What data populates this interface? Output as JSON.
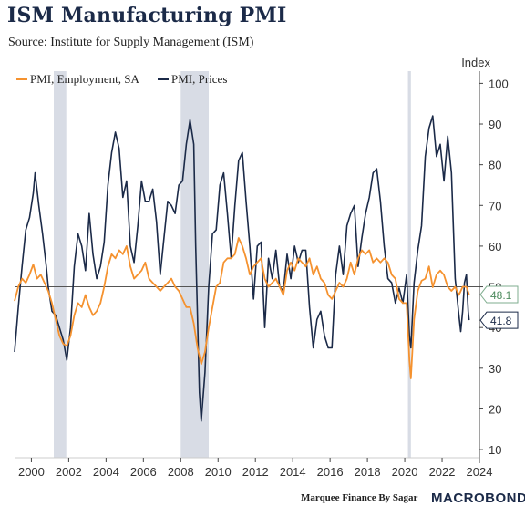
{
  "header": {
    "title": "ISM Manufacturing PMI",
    "subtitle": "Source: Institute for Supply Management (ISM)"
  },
  "footer": {
    "credit": "Marquee Finance By Sagar",
    "brand": "MACROBOND"
  },
  "chart_data": {
    "type": "line",
    "ylabel": "Index",
    "ylim": [
      8,
      103
    ],
    "xlim": [
      1999.1,
      2024.0
    ],
    "y_ticks": [
      10,
      20,
      30,
      40,
      50,
      60,
      70,
      80,
      90,
      100
    ],
    "x_ticks": [
      2000,
      2002,
      2004,
      2006,
      2008,
      2010,
      2012,
      2014,
      2016,
      2018,
      2020,
      2022,
      2024
    ],
    "legend_placement": "top-left",
    "reference_line": 50,
    "recessions": [
      [
        2001.2,
        2001.87
      ],
      [
        2008.0,
        2009.5
      ],
      [
        2020.17,
        2020.33
      ]
    ],
    "colors": {
      "employment": "#f5922f",
      "prices": "#1b2a48",
      "recession": "#d8dce5",
      "reference": "#555555",
      "employment_label_border": "#7fae8f",
      "employment_label_text": "#4c8a5d"
    },
    "last_value_labels": [
      {
        "series": "PMI, Employment, SA",
        "text": "48.1",
        "value": 48.1
      },
      {
        "series": "PMI, Prices",
        "text": "41.8",
        "value": 41.8
      }
    ],
    "series": [
      {
        "name": "PMI, Employment, SA",
        "color": "#f5922f",
        "points": [
          [
            1999.1,
            46.5
          ],
          [
            1999.3,
            50
          ],
          [
            1999.5,
            52
          ],
          [
            1999.7,
            51
          ],
          [
            1999.9,
            53
          ],
          [
            2000.1,
            55.5
          ],
          [
            2000.3,
            52
          ],
          [
            2000.5,
            53
          ],
          [
            2000.7,
            51
          ],
          [
            2000.9,
            49
          ],
          [
            2001.1,
            46
          ],
          [
            2001.3,
            42
          ],
          [
            2001.5,
            38
          ],
          [
            2001.7,
            36
          ],
          [
            2001.9,
            35.5
          ],
          [
            2002.1,
            38
          ],
          [
            2002.3,
            43
          ],
          [
            2002.5,
            46
          ],
          [
            2002.7,
            45
          ],
          [
            2002.9,
            48
          ],
          [
            2003.1,
            45
          ],
          [
            2003.3,
            43
          ],
          [
            2003.5,
            44
          ],
          [
            2003.7,
            46
          ],
          [
            2003.9,
            50
          ],
          [
            2004.1,
            55
          ],
          [
            2004.3,
            58
          ],
          [
            2004.5,
            57
          ],
          [
            2004.7,
            59
          ],
          [
            2004.9,
            58
          ],
          [
            2005.1,
            60
          ],
          [
            2005.3,
            55
          ],
          [
            2005.5,
            52
          ],
          [
            2005.7,
            53
          ],
          [
            2005.9,
            54
          ],
          [
            2006.1,
            56
          ],
          [
            2006.3,
            52
          ],
          [
            2006.5,
            51
          ],
          [
            2006.7,
            50
          ],
          [
            2006.9,
            49
          ],
          [
            2007.1,
            50
          ],
          [
            2007.3,
            51
          ],
          [
            2007.5,
            52
          ],
          [
            2007.7,
            50
          ],
          [
            2007.9,
            49
          ],
          [
            2008.1,
            47
          ],
          [
            2008.3,
            45
          ],
          [
            2008.5,
            45
          ],
          [
            2008.7,
            41
          ],
          [
            2008.9,
            35
          ],
          [
            2009.1,
            31
          ],
          [
            2009.3,
            34
          ],
          [
            2009.5,
            40
          ],
          [
            2009.7,
            45
          ],
          [
            2009.9,
            50
          ],
          [
            2010.1,
            51
          ],
          [
            2010.3,
            56
          ],
          [
            2010.5,
            57
          ],
          [
            2010.7,
            57
          ],
          [
            2010.9,
            58
          ],
          [
            2011.1,
            62
          ],
          [
            2011.3,
            60
          ],
          [
            2011.5,
            57
          ],
          [
            2011.7,
            53
          ],
          [
            2011.9,
            55
          ],
          [
            2012.1,
            56
          ],
          [
            2012.3,
            57
          ],
          [
            2012.5,
            52
          ],
          [
            2012.7,
            50
          ],
          [
            2012.9,
            51
          ],
          [
            2013.1,
            52
          ],
          [
            2013.3,
            50
          ],
          [
            2013.5,
            48
          ],
          [
            2013.7,
            54
          ],
          [
            2013.9,
            56
          ],
          [
            2014.1,
            54
          ],
          [
            2014.3,
            57
          ],
          [
            2014.5,
            56
          ],
          [
            2014.7,
            55
          ],
          [
            2014.9,
            57
          ],
          [
            2015.1,
            53
          ],
          [
            2015.3,
            55
          ],
          [
            2015.5,
            52
          ],
          [
            2015.7,
            51
          ],
          [
            2015.9,
            48
          ],
          [
            2016.1,
            47
          ],
          [
            2016.3,
            49
          ],
          [
            2016.5,
            51
          ],
          [
            2016.7,
            50
          ],
          [
            2016.9,
            52
          ],
          [
            2017.1,
            56
          ],
          [
            2017.3,
            53
          ],
          [
            2017.5,
            57
          ],
          [
            2017.7,
            59
          ],
          [
            2017.9,
            58
          ],
          [
            2018.1,
            59
          ],
          [
            2018.3,
            56
          ],
          [
            2018.5,
            57
          ],
          [
            2018.7,
            56
          ],
          [
            2018.9,
            57
          ],
          [
            2019.1,
            56
          ],
          [
            2019.3,
            53
          ],
          [
            2019.5,
            52
          ],
          [
            2019.7,
            47
          ],
          [
            2019.9,
            46
          ],
          [
            2020.1,
            46
          ],
          [
            2020.25,
            32
          ],
          [
            2020.33,
            27.5
          ],
          [
            2020.5,
            42
          ],
          [
            2020.7,
            49
          ],
          [
            2020.9,
            51.5
          ],
          [
            2021.1,
            52
          ],
          [
            2021.3,
            55
          ],
          [
            2021.5,
            49.9
          ],
          [
            2021.7,
            53
          ],
          [
            2021.9,
            54
          ],
          [
            2022.1,
            52.9
          ],
          [
            2022.3,
            50
          ],
          [
            2022.5,
            49
          ],
          [
            2022.7,
            50
          ],
          [
            2022.9,
            48
          ],
          [
            2023.1,
            50
          ],
          [
            2023.3,
            50
          ],
          [
            2023.45,
            48.1
          ]
        ]
      },
      {
        "name": "PMI, Prices",
        "color": "#1b2a48",
        "points": [
          [
            1999.1,
            34
          ],
          [
            1999.3,
            45
          ],
          [
            1999.5,
            55
          ],
          [
            1999.7,
            64
          ],
          [
            1999.9,
            67
          ],
          [
            2000.1,
            73
          ],
          [
            2000.2,
            78
          ],
          [
            2000.4,
            70
          ],
          [
            2000.6,
            63
          ],
          [
            2000.8,
            55
          ],
          [
            2000.9,
            50
          ],
          [
            2001.1,
            44
          ],
          [
            2001.3,
            43
          ],
          [
            2001.5,
            40
          ],
          [
            2001.7,
            37
          ],
          [
            2001.9,
            32
          ],
          [
            2002.1,
            40
          ],
          [
            2002.3,
            55
          ],
          [
            2002.5,
            63
          ],
          [
            2002.7,
            60
          ],
          [
            2002.9,
            54
          ],
          [
            2003.1,
            68
          ],
          [
            2003.3,
            58
          ],
          [
            2003.5,
            52
          ],
          [
            2003.7,
            55
          ],
          [
            2003.9,
            61
          ],
          [
            2004.1,
            75
          ],
          [
            2004.3,
            83
          ],
          [
            2004.5,
            88
          ],
          [
            2004.7,
            84
          ],
          [
            2004.9,
            72
          ],
          [
            2005.1,
            76
          ],
          [
            2005.3,
            60
          ],
          [
            2005.5,
            56
          ],
          [
            2005.7,
            65
          ],
          [
            2005.9,
            76
          ],
          [
            2006.1,
            71
          ],
          [
            2006.3,
            71
          ],
          [
            2006.5,
            74
          ],
          [
            2006.7,
            66
          ],
          [
            2006.9,
            53
          ],
          [
            2007.1,
            62
          ],
          [
            2007.3,
            71
          ],
          [
            2007.5,
            70
          ],
          [
            2007.7,
            68
          ],
          [
            2007.9,
            75
          ],
          [
            2008.1,
            76
          ],
          [
            2008.3,
            85
          ],
          [
            2008.5,
            91
          ],
          [
            2008.7,
            85
          ],
          [
            2008.8,
            60
          ],
          [
            2009.0,
            24
          ],
          [
            2009.1,
            17
          ],
          [
            2009.3,
            29
          ],
          [
            2009.5,
            50
          ],
          [
            2009.7,
            63
          ],
          [
            2009.9,
            64
          ],
          [
            2010.1,
            75
          ],
          [
            2010.3,
            78
          ],
          [
            2010.5,
            68
          ],
          [
            2010.7,
            57
          ],
          [
            2010.9,
            70
          ],
          [
            2011.1,
            81
          ],
          [
            2011.3,
            83
          ],
          [
            2011.5,
            71
          ],
          [
            2011.7,
            60
          ],
          [
            2011.9,
            47
          ],
          [
            2012.1,
            60
          ],
          [
            2012.3,
            61
          ],
          [
            2012.5,
            40
          ],
          [
            2012.7,
            57
          ],
          [
            2012.9,
            52
          ],
          [
            2013.1,
            59
          ],
          [
            2013.3,
            50
          ],
          [
            2013.5,
            49
          ],
          [
            2013.7,
            58
          ],
          [
            2013.9,
            52
          ],
          [
            2014.1,
            60
          ],
          [
            2014.3,
            56
          ],
          [
            2014.5,
            59
          ],
          [
            2014.7,
            59
          ],
          [
            2014.9,
            45
          ],
          [
            2015.1,
            35
          ],
          [
            2015.3,
            42
          ],
          [
            2015.5,
            44
          ],
          [
            2015.7,
            38
          ],
          [
            2015.9,
            35
          ],
          [
            2016.1,
            35
          ],
          [
            2016.3,
            53
          ],
          [
            2016.5,
            60
          ],
          [
            2016.7,
            53
          ],
          [
            2016.9,
            65
          ],
          [
            2017.1,
            68
          ],
          [
            2017.3,
            70
          ],
          [
            2017.5,
            55
          ],
          [
            2017.7,
            62
          ],
          [
            2017.9,
            68
          ],
          [
            2018.1,
            72
          ],
          [
            2018.3,
            78
          ],
          [
            2018.5,
            79
          ],
          [
            2018.7,
            71
          ],
          [
            2018.9,
            60
          ],
          [
            2019.1,
            52
          ],
          [
            2019.3,
            51
          ],
          [
            2019.5,
            46
          ],
          [
            2019.7,
            49.7
          ],
          [
            2019.9,
            46
          ],
          [
            2020.1,
            53
          ],
          [
            2020.25,
            38
          ],
          [
            2020.33,
            35
          ],
          [
            2020.5,
            51
          ],
          [
            2020.7,
            59
          ],
          [
            2020.9,
            65
          ],
          [
            2021.1,
            82
          ],
          [
            2021.3,
            89
          ],
          [
            2021.5,
            92
          ],
          [
            2021.7,
            82
          ],
          [
            2021.9,
            85
          ],
          [
            2022.1,
            76
          ],
          [
            2022.3,
            87
          ],
          [
            2022.5,
            78
          ],
          [
            2022.7,
            52
          ],
          [
            2022.9,
            43
          ],
          [
            2023.0,
            39
          ],
          [
            2023.1,
            44
          ],
          [
            2023.2,
            51
          ],
          [
            2023.3,
            53
          ],
          [
            2023.4,
            44
          ],
          [
            2023.45,
            41.8
          ]
        ]
      }
    ]
  }
}
